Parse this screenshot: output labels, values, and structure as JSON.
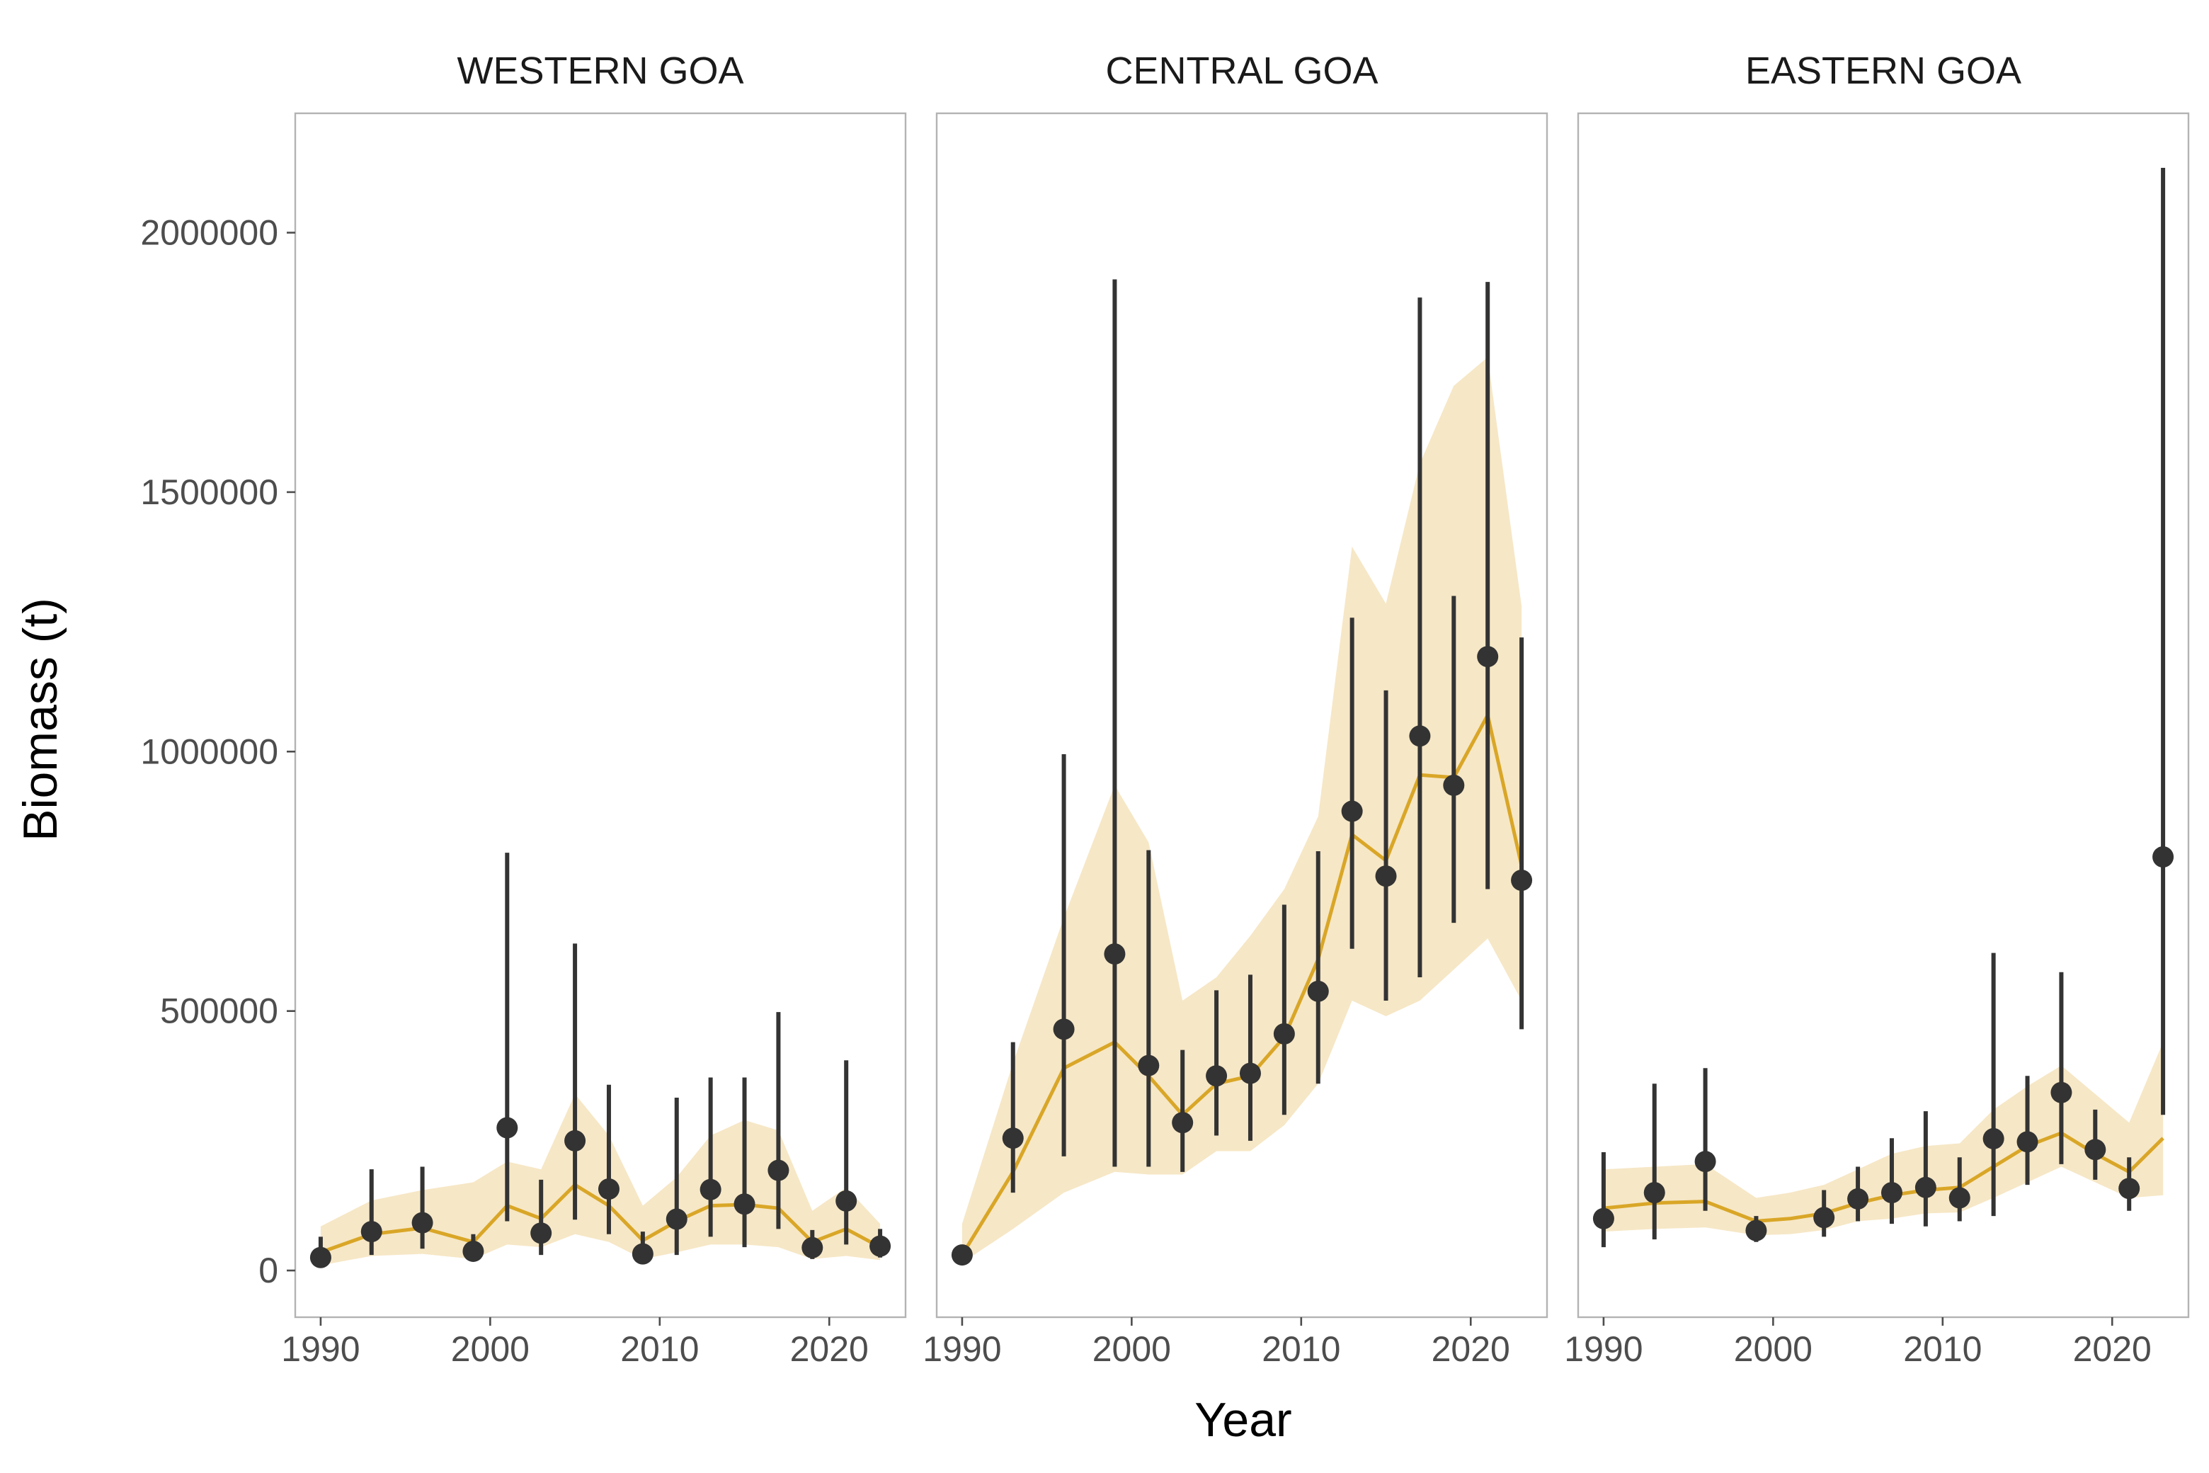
{
  "chart_data": {
    "type": "line",
    "xlabel": "Year",
    "ylabel": "Biomass (t)",
    "xlim": [
      1988.5,
      2024.5
    ],
    "ylim": [
      -90000,
      2230000
    ],
    "x_ticks": [
      1990,
      2000,
      2010,
      2020
    ],
    "y_ticks": [
      0,
      500000,
      1000000,
      1500000,
      2000000
    ],
    "y_tick_labels": [
      "0",
      "500000",
      "1000000",
      "1500000",
      "2000000"
    ],
    "grid": false,
    "legend": "none",
    "colors": {
      "model_line": "#d9a627",
      "ribbon": "#f6e7c6",
      "points": "#333333",
      "frame": "#b3b3b3"
    },
    "panels": [
      {
        "name": "WESTERN GOA",
        "model": {
          "x": [
            1990,
            1993,
            1996,
            1999,
            2001,
            2003,
            2005,
            2007,
            2009,
            2011,
            2013,
            2015,
            2017,
            2019,
            2021,
            2023
          ],
          "y": [
            35000,
            70000,
            82000,
            55000,
            125000,
            100000,
            165000,
            125000,
            58000,
            95000,
            125000,
            127000,
            120000,
            55000,
            80000,
            45000
          ],
          "lower": [
            10000,
            28000,
            32000,
            22000,
            50000,
            45000,
            70000,
            55000,
            22000,
            35000,
            50000,
            50000,
            45000,
            22000,
            28000,
            20000
          ],
          "upper": [
            85000,
            135000,
            155000,
            170000,
            210000,
            195000,
            340000,
            260000,
            125000,
            180000,
            260000,
            290000,
            270000,
            115000,
            160000,
            90000
          ]
        },
        "observations": {
          "x": [
            1990,
            1993,
            1996,
            1999,
            2001,
            2003,
            2005,
            2007,
            2009,
            2011,
            2013,
            2015,
            2017,
            2019,
            2021,
            2023
          ],
          "y": [
            25000,
            75000,
            92000,
            37000,
            275000,
            72000,
            250000,
            157000,
            32000,
            99000,
            156000,
            128000,
            193000,
            44000,
            134000,
            47000
          ],
          "lower": [
            10000,
            30000,
            42000,
            20000,
            95000,
            30000,
            98000,
            70000,
            15000,
            30000,
            65000,
            45000,
            80000,
            22000,
            50000,
            25000
          ],
          "upper": [
            65000,
            195000,
            200000,
            70000,
            805000,
            175000,
            630000,
            358000,
            75000,
            333000,
            372000,
            372000,
            498000,
            78000,
            405000,
            80000
          ]
        }
      },
      {
        "name": "CENTRAL GOA",
        "model": {
          "x": [
            1990,
            1993,
            1996,
            1999,
            2001,
            2003,
            2005,
            2007,
            2009,
            2011,
            2013,
            2015,
            2017,
            2019,
            2021,
            2023
          ],
          "y": [
            30000,
            190000,
            390000,
            440000,
            375000,
            300000,
            360000,
            375000,
            450000,
            600000,
            840000,
            790000,
            955000,
            950000,
            1070000,
            780000
          ],
          "lower": [
            15000,
            80000,
            150000,
            190000,
            185000,
            185000,
            230000,
            230000,
            280000,
            360000,
            520000,
            490000,
            520000,
            580000,
            640000,
            520000
          ],
          "upper": [
            90000,
            400000,
            680000,
            935000,
            825000,
            520000,
            565000,
            645000,
            735000,
            875000,
            1395000,
            1285000,
            1555000,
            1705000,
            1760000,
            1280000
          ]
        },
        "observations": {
          "x": [
            1990,
            1993,
            1996,
            1999,
            2001,
            2003,
            2005,
            2007,
            2009,
            2011,
            2013,
            2015,
            2017,
            2019,
            2021,
            2023
          ],
          "y": [
            30000,
            255000,
            465000,
            610000,
            395000,
            285000,
            375000,
            380000,
            456000,
            538000,
            885000,
            760000,
            1030000,
            935000,
            1183000,
            752000
          ],
          "lower": [
            15000,
            150000,
            220000,
            200000,
            200000,
            190000,
            260000,
            250000,
            300000,
            360000,
            620000,
            520000,
            565000,
            670000,
            735000,
            465000
          ],
          "upper": [
            45000,
            440000,
            995000,
            1910000,
            810000,
            425000,
            540000,
            570000,
            705000,
            808000,
            1258000,
            1118000,
            1875000,
            1300000,
            1905000,
            1220000
          ]
        }
      },
      {
        "name": "EASTERN GOA",
        "model": {
          "x": [
            1990,
            1993,
            1996,
            1999,
            2001,
            2003,
            2005,
            2007,
            2009,
            2011,
            2013,
            2015,
            2017,
            2019,
            2021,
            2023
          ],
          "y": [
            120000,
            130000,
            133000,
            95000,
            100000,
            110000,
            130000,
            145000,
            155000,
            160000,
            200000,
            240000,
            265000,
            225000,
            190000,
            255000
          ],
          "lower": [
            75000,
            80000,
            83000,
            68000,
            70000,
            78000,
            95000,
            100000,
            110000,
            112000,
            140000,
            170000,
            200000,
            170000,
            140000,
            145000
          ],
          "upper": [
            195000,
            200000,
            205000,
            140000,
            150000,
            165000,
            195000,
            225000,
            240000,
            245000,
            310000,
            355000,
            395000,
            340000,
            285000,
            440000
          ]
        },
        "observations": {
          "x": [
            1990,
            1993,
            1996,
            1999,
            2003,
            2005,
            2007,
            2009,
            2011,
            2013,
            2015,
            2017,
            2019,
            2021,
            2023
          ],
          "y": [
            100000,
            150000,
            210000,
            77000,
            102000,
            138000,
            150000,
            160000,
            140000,
            254000,
            248000,
            343000,
            233000,
            158000,
            797000
          ],
          "lower": [
            45000,
            60000,
            115000,
            55000,
            65000,
            95000,
            90000,
            85000,
            95000,
            105000,
            165000,
            205000,
            175000,
            115000,
            300000
          ],
          "upper": [
            228000,
            360000,
            390000,
            105000,
            155000,
            200000,
            255000,
            307000,
            218000,
            612000,
            375000,
            575000,
            310000,
            218000,
            2125000
          ]
        }
      }
    ]
  }
}
